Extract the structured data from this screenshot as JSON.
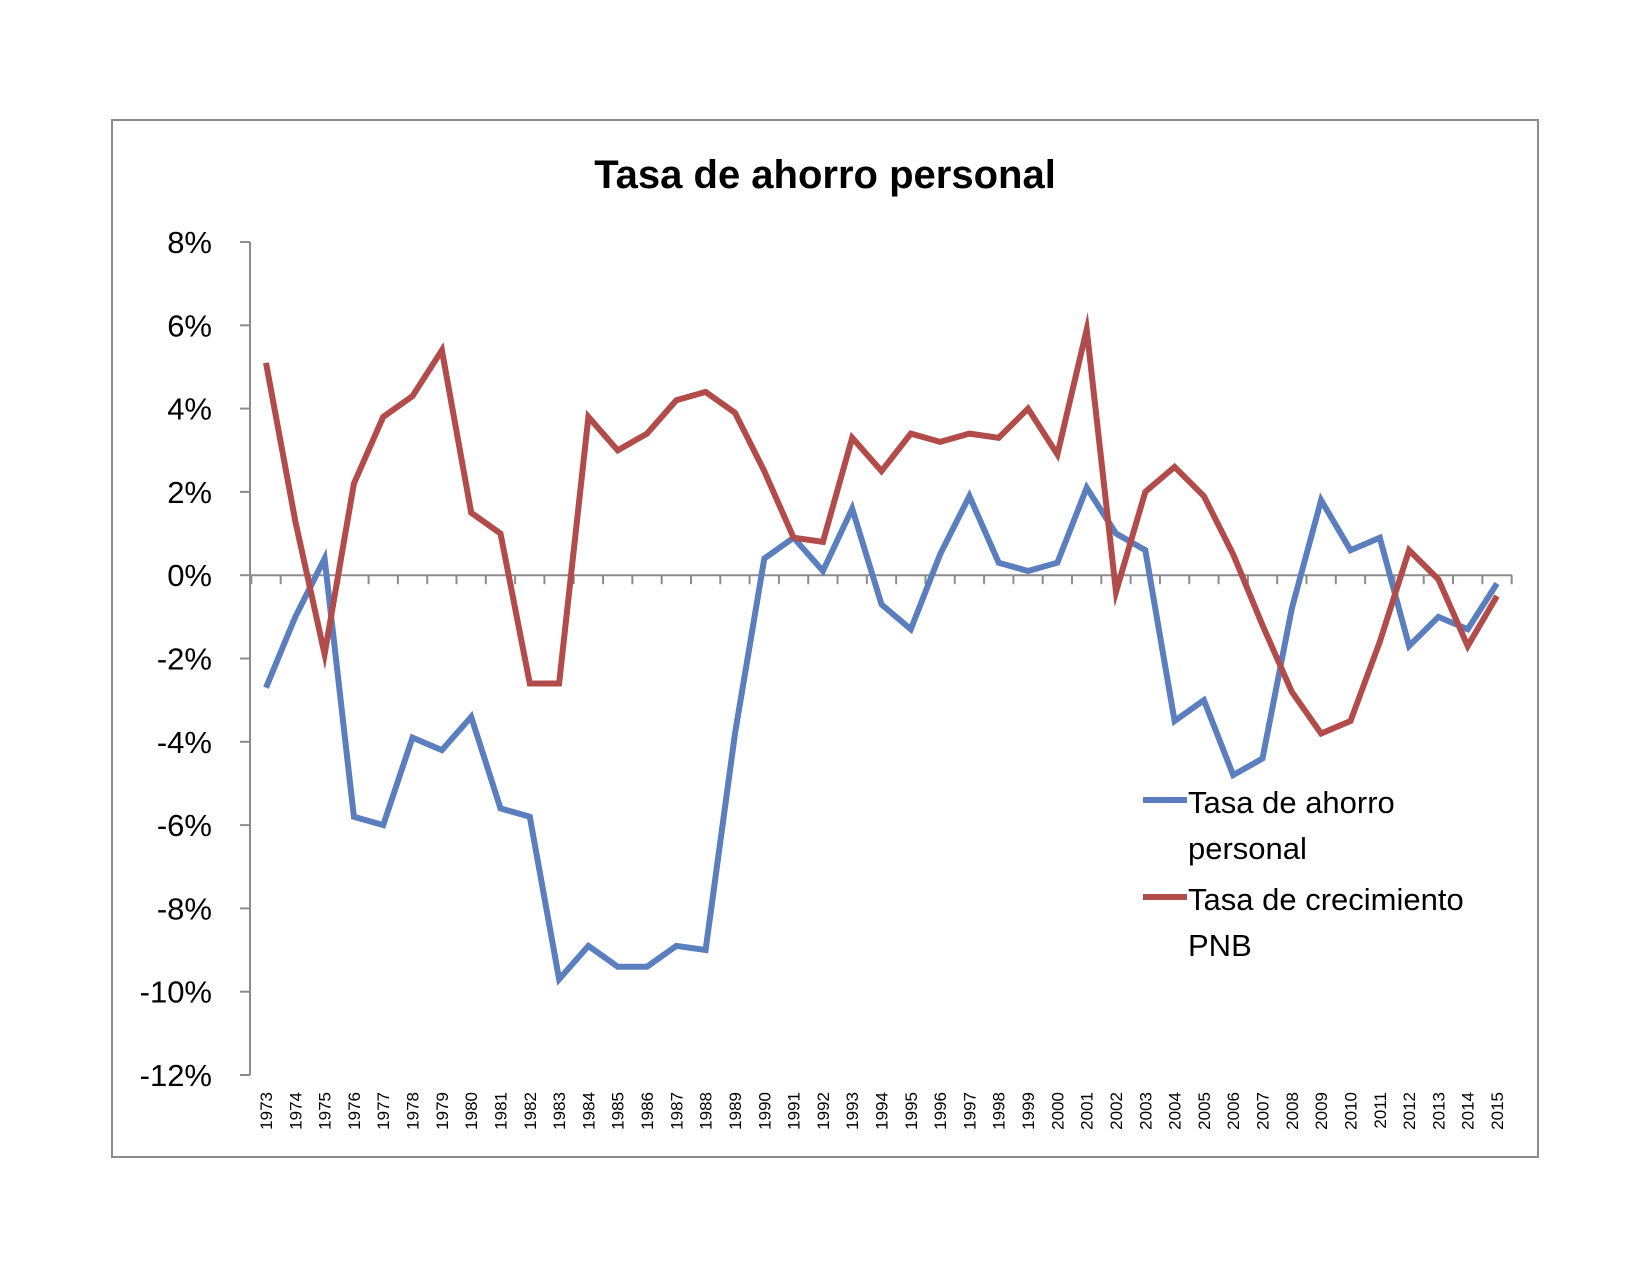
{
  "chart_data": {
    "type": "line",
    "title": "Tasa de ahorro personal",
    "xlabel": "",
    "ylabel": "",
    "ylim": [
      -12,
      8
    ],
    "y_tick_step": 2,
    "y_tick_labels": [
      "8%",
      "6%",
      "4%",
      "2%",
      "0%",
      "-2%",
      "-4%",
      "-6%",
      "-8%",
      "-10%",
      "-12%"
    ],
    "grid": false,
    "legend_position": "right",
    "x": [
      "1973",
      "1974",
      "1975",
      "1976",
      "1977",
      "1978",
      "1979",
      "1980",
      "1981",
      "1982",
      "1983",
      "1984",
      "1985",
      "1986",
      "1987",
      "1988",
      "1989",
      "1990",
      "1991",
      "1992",
      "1993",
      "1994",
      "1995",
      "1996",
      "1997",
      "1998",
      "1999",
      "2000",
      "2001",
      "2002",
      "2003",
      "2004",
      "2005",
      "2006",
      "2007",
      "2008",
      "2009",
      "2010",
      "2011",
      "2012",
      "2013",
      "2014",
      "2015"
    ],
    "series": [
      {
        "name": "Tasa de ahorro personal",
        "legend_lines": [
          "Tasa de ahorro",
          "personal"
        ],
        "color": "#5b7fbe",
        "values": [
          -2.7,
          -1.0,
          0.4,
          -5.8,
          -6.0,
          -3.9,
          -4.2,
          -3.4,
          -5.6,
          -5.8,
          -9.7,
          -8.9,
          -9.4,
          -9.4,
          -8.9,
          -9.0,
          -3.8,
          0.4,
          0.9,
          0.1,
          1.6,
          -0.7,
          -1.3,
          0.5,
          1.9,
          0.3,
          0.1,
          0.3,
          2.1,
          1.0,
          0.6,
          -3.5,
          -3.0,
          -4.8,
          -4.4,
          -0.8,
          1.8,
          0.6,
          0.9,
          -1.7,
          -1.0,
          -1.3,
          -0.2
        ]
      },
      {
        "name": "Tasa de crecimiento PNB",
        "legend_lines": [
          "Tasa de crecimiento",
          "PNB"
        ],
        "color": "#b24c4a",
        "values": [
          5.1,
          1.3,
          -1.9,
          2.2,
          3.8,
          4.3,
          5.4,
          1.5,
          1.0,
          -2.6,
          -2.6,
          3.8,
          3.0,
          3.4,
          4.2,
          4.4,
          3.9,
          2.5,
          0.9,
          0.8,
          3.3,
          2.5,
          3.4,
          3.2,
          3.4,
          3.3,
          4.0,
          2.9,
          5.9,
          -0.4,
          2.0,
          2.6,
          1.9,
          0.5,
          -1.2,
          -2.8,
          -3.8,
          -3.5,
          -1.6,
          0.6,
          -0.1,
          -1.7,
          -0.5
        ]
      }
    ]
  }
}
